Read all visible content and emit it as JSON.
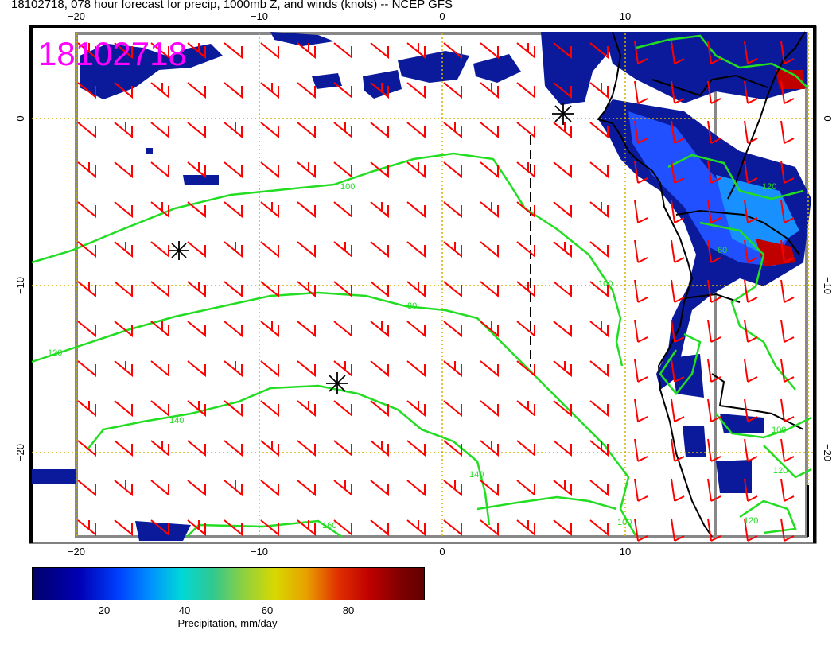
{
  "title": "18102718, 078 hour forecast for precip, 1000mb Z, and winds (knots) -- NCEP GFS",
  "stamp": "18102718",
  "top_lon_labels": [
    "−20",
    "−10",
    "0",
    "10"
  ],
  "bottom_lon_labels": [
    "−20",
    "−10",
    "0",
    "10"
  ],
  "left_lat_labels": [
    "0",
    "−10",
    "−20"
  ],
  "right_lat_labels": [
    "0",
    "−10",
    "−20"
  ],
  "contour_labels": [
    "100",
    "120",
    "140",
    "160",
    "100",
    "140",
    "80",
    "100",
    "120",
    "120",
    "60",
    "100",
    "120"
  ],
  "colorbar": {
    "ticks": [
      "20",
      "40",
      "60",
      "80"
    ],
    "label": "Precipitation, mm/day"
  },
  "colors": {
    "wind_barbs": "#ff0000",
    "height_contours": "#22dd22",
    "stamp": "#ff00ff",
    "grid": "#d4b000",
    "coastline": "#000000"
  }
}
